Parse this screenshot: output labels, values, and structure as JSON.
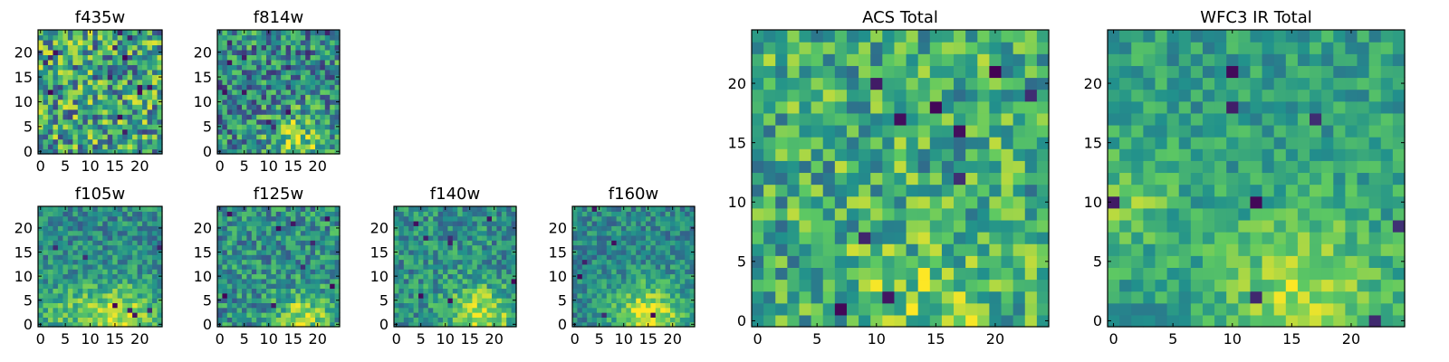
{
  "figure": {
    "background": "#ffffff"
  },
  "colormap": {
    "name": "viridis",
    "stops": [
      "#440154",
      "#3b528b",
      "#21918c",
      "#5ec962",
      "#fde725"
    ]
  },
  "chart_data": [
    {
      "type": "heatmap",
      "title": "f435w",
      "grid_size": 25,
      "xlim": [
        0,
        24
      ],
      "ylim": [
        0,
        24
      ],
      "xticks": [
        0,
        5,
        10,
        15,
        20
      ],
      "yticks": [
        0,
        5,
        10,
        15,
        20
      ],
      "pattern": {
        "base": 0.58,
        "noise": 0.38,
        "blobs": [],
        "dark_spots": 14,
        "seed": 11
      }
    },
    {
      "type": "heatmap",
      "title": "f814w",
      "grid_size": 25,
      "xlim": [
        0,
        24
      ],
      "ylim": [
        0,
        24
      ],
      "xticks": [
        0,
        5,
        10,
        15,
        20
      ],
      "yticks": [
        0,
        5,
        10,
        15,
        20
      ],
      "pattern": {
        "base": 0.48,
        "noise": 0.32,
        "blobs": [
          [
            16,
            2,
            4,
            0.35
          ]
        ],
        "dark_spots": 12,
        "seed": 23
      }
    },
    {
      "type": "heatmap",
      "title": "f105w",
      "grid_size": 25,
      "xlim": [
        0,
        24
      ],
      "ylim": [
        0,
        24
      ],
      "xticks": [
        0,
        5,
        10,
        15,
        20
      ],
      "yticks": [
        0,
        5,
        10,
        15,
        20
      ],
      "pattern": {
        "base": 0.48,
        "noise": 0.2,
        "blobs": [
          [
            16,
            1,
            5,
            0.45
          ],
          [
            5,
            3,
            4,
            0.2
          ]
        ],
        "dark_spots": 7,
        "seed": 37
      }
    },
    {
      "type": "heatmap",
      "title": "f125w",
      "grid_size": 25,
      "xlim": [
        0,
        24
      ],
      "ylim": [
        0,
        24
      ],
      "xticks": [
        0,
        5,
        10,
        15,
        20
      ],
      "yticks": [
        0,
        5,
        10,
        15,
        20
      ],
      "pattern": {
        "base": 0.5,
        "noise": 0.24,
        "blobs": [
          [
            17,
            1,
            4,
            0.35
          ]
        ],
        "dark_spots": 9,
        "seed": 41
      }
    },
    {
      "type": "heatmap",
      "title": "f140w",
      "grid_size": 25,
      "xlim": [
        0,
        24
      ],
      "ylim": [
        0,
        24
      ],
      "xticks": [
        0,
        5,
        10,
        15,
        20
      ],
      "yticks": [
        0,
        5,
        10,
        15,
        20
      ],
      "pattern": {
        "base": 0.5,
        "noise": 0.22,
        "blobs": [
          [
            17,
            1,
            5,
            0.4
          ]
        ],
        "dark_spots": 8,
        "seed": 53
      }
    },
    {
      "type": "heatmap",
      "title": "f160w",
      "grid_size": 25,
      "xlim": [
        0,
        24
      ],
      "ylim": [
        0,
        24
      ],
      "xticks": [
        0,
        5,
        10,
        15,
        20
      ],
      "yticks": [
        0,
        5,
        10,
        15,
        20
      ],
      "pattern": {
        "base": 0.47,
        "noise": 0.18,
        "blobs": [
          [
            15,
            1,
            5,
            0.5
          ]
        ],
        "dark_spots": 6,
        "seed": 67
      }
    },
    {
      "type": "heatmap",
      "title": "ACS Total",
      "grid_size": 25,
      "xlim": [
        0,
        24
      ],
      "ylim": [
        0,
        24
      ],
      "xticks": [
        0,
        5,
        10,
        15,
        20
      ],
      "yticks": [
        0,
        5,
        10,
        15,
        20
      ],
      "pattern": {
        "base": 0.62,
        "noise": 0.28,
        "blobs": [
          [
            14,
            1,
            5,
            0.15
          ]
        ],
        "dark_spots": 10,
        "seed": 79
      }
    },
    {
      "type": "heatmap",
      "title": "WFC3 IR Total",
      "grid_size": 25,
      "xlim": [
        0,
        24
      ],
      "ylim": [
        0,
        24
      ],
      "xticks": [
        0,
        5,
        10,
        15,
        20
      ],
      "yticks": [
        0,
        5,
        10,
        15,
        20
      ],
      "pattern": {
        "base": 0.56,
        "noise": 0.16,
        "blobs": [
          [
            16,
            2,
            5,
            0.3
          ],
          [
            1,
            10,
            3,
            0.2
          ]
        ],
        "dark_spots": 8,
        "seed": 97
      }
    }
  ]
}
